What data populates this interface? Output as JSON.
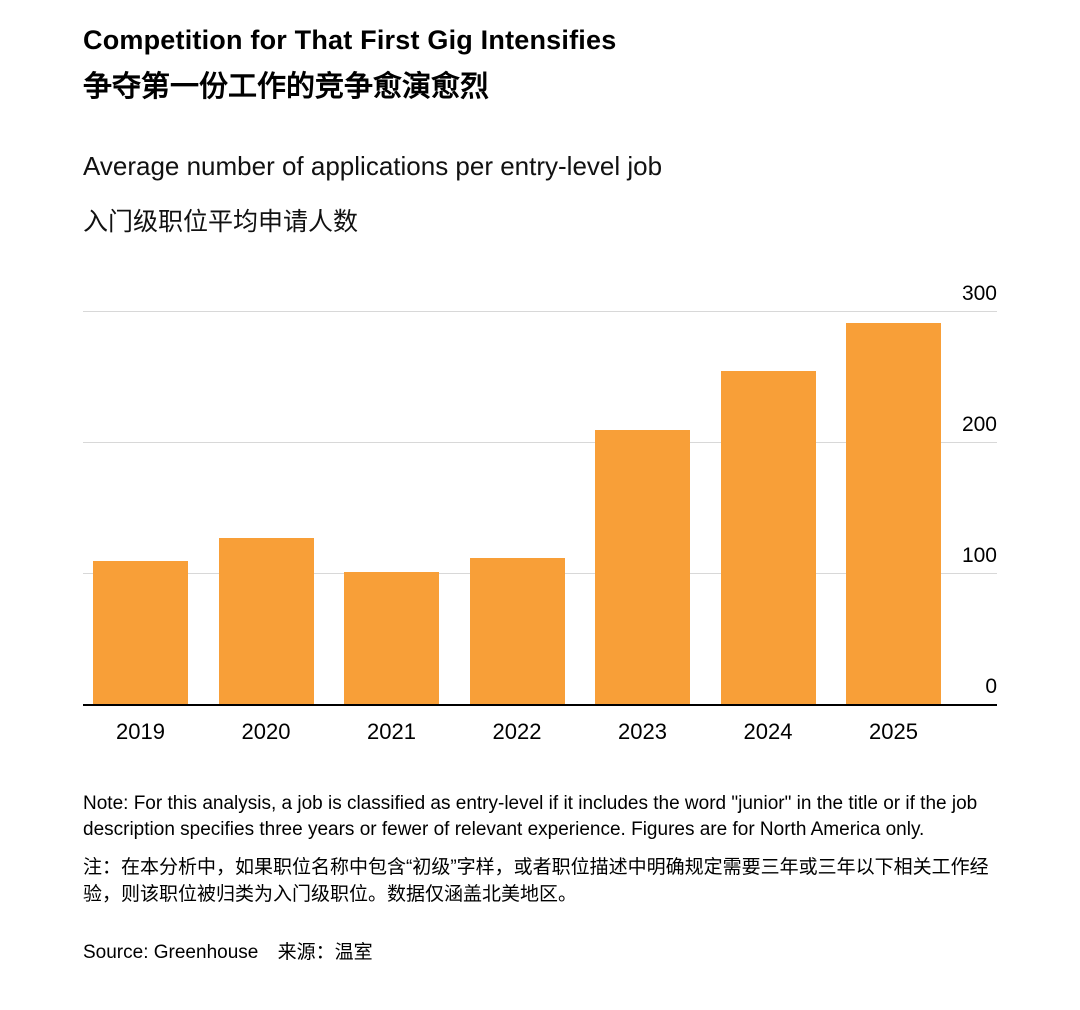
{
  "header": {
    "title_en": "Competition for That First Gig Intensifies",
    "title_zh": "争夺第一份工作的竞争愈演愈烈",
    "subtitle_en": "Average number of applications per entry-level job",
    "subtitle_zh": "入门级职位平均申请人数"
  },
  "chart_data": {
    "type": "bar",
    "title": "Competition for That First Gig Intensifies",
    "subtitle": "Average number of applications per entry-level job",
    "categories": [
      "2019",
      "2020",
      "2021",
      "2022",
      "2023",
      "2024",
      "2025"
    ],
    "values": [
      110,
      128,
      102,
      112,
      210,
      255,
      292
    ],
    "xlabel": "",
    "ylabel": "",
    "ylim": [
      0,
      300
    ],
    "yticks": [
      0,
      100,
      200,
      300
    ],
    "ytick_side": "right",
    "grid": true,
    "bar_color": "#F89F38",
    "gridline_color": "#d8d8d8",
    "axis_color": "#000000"
  },
  "notes": {
    "note_en": "Note: For this analysis, a job is classified as entry-level if it includes the word \"junior\" in the title or if the job description specifies three years or fewer of relevant experience. Figures are for North America only.",
    "note_zh": "注：在本分析中，如果职位名称中包含“初级”字样，或者职位描述中明确规定需要三年或三年以下相关工作经验，则该职位被归类为入门级职位。数据仅涵盖北美地区。"
  },
  "source": {
    "source_en": "Source: Greenhouse",
    "source_zh": "来源：温室"
  }
}
